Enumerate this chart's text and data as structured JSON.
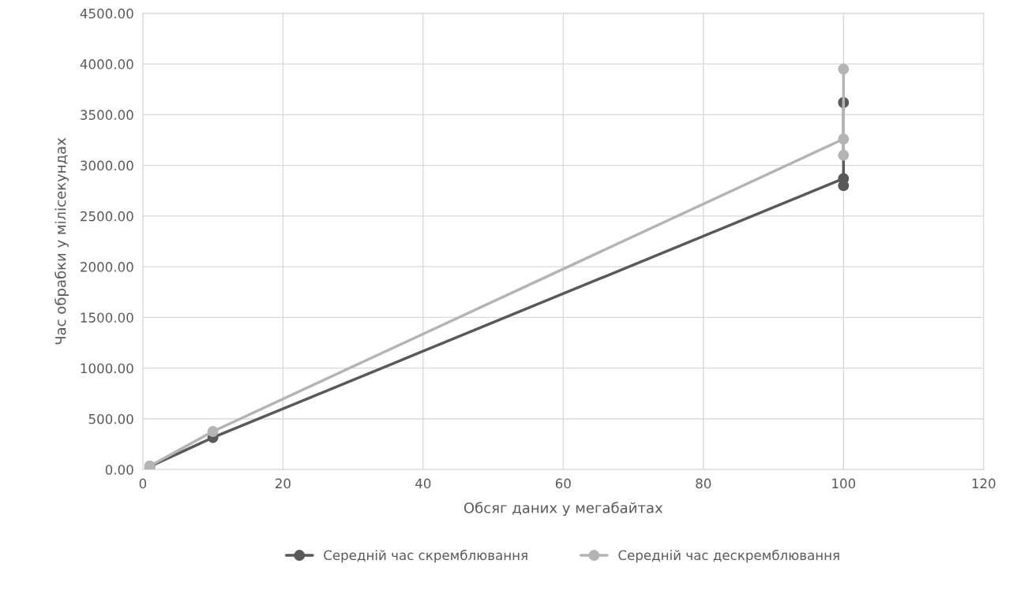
{
  "chart_data": {
    "type": "line",
    "xlabel": "Обсяг даних у мегабайтах",
    "ylabel": "Час обрабки у мілісекундах",
    "x": [
      1,
      10,
      100,
      100,
      100
    ],
    "series": [
      {
        "name": "Середній час скремблювання",
        "color": "#595959",
        "values": [
          30,
          315,
          2870,
          2800,
          3620
        ]
      },
      {
        "name": "Середній час дескремблювання",
        "color": "#b4b4b4",
        "values": [
          35,
          375,
          3260,
          3100,
          3950
        ]
      }
    ],
    "xlim": [
      0,
      120
    ],
    "xticks": [
      0,
      20,
      40,
      60,
      80,
      100,
      120
    ],
    "ylim": [
      0,
      4500
    ],
    "yticks": [
      {
        "value": 0,
        "label": "0.00"
      },
      {
        "value": 500,
        "label": "500.00"
      },
      {
        "value": 1000,
        "label": "1000.00"
      },
      {
        "value": 1500,
        "label": "1500.00"
      },
      {
        "value": 2000,
        "label": "2000.00"
      },
      {
        "value": 2500,
        "label": "2500.00"
      },
      {
        "value": 3000,
        "label": "3000.00"
      },
      {
        "value": 3500,
        "label": "3500.00"
      },
      {
        "value": 4000,
        "label": "4000.00"
      },
      {
        "value": 4500,
        "label": "4500.00"
      }
    ],
    "grid": true,
    "legend": "bottom",
    "marker": "circle",
    "line_style": "solid"
  }
}
